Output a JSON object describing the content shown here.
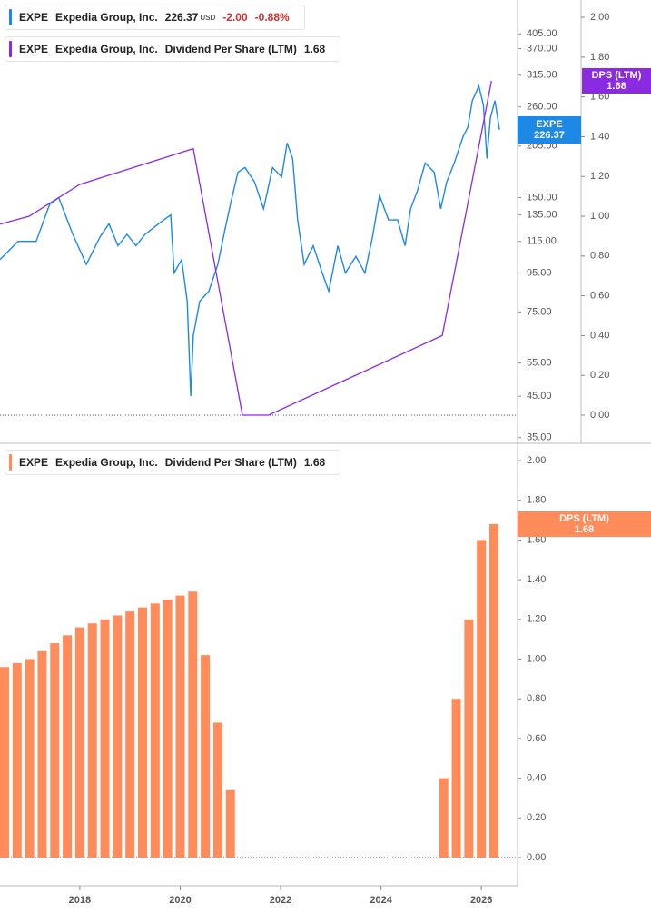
{
  "chart_data": [
    {
      "type": "line",
      "log_scale": true,
      "xlim": [
        2016.41,
        2026.72
      ],
      "ylim": [
        34,
        497
      ],
      "yticks": [
        {
          "value": 405,
          "label": "405.00"
        },
        {
          "value": 370,
          "label": "370.00"
        },
        {
          "value": 315,
          "label": "315.00"
        },
        {
          "value": 260,
          "label": "260.00"
        },
        {
          "value": 205,
          "label": "205.00"
        },
        {
          "value": 150,
          "label": "150.00"
        },
        {
          "value": 135,
          "label": "135.00"
        },
        {
          "value": 115,
          "label": "115.00"
        },
        {
          "value": 95,
          "label": "95.00"
        },
        {
          "value": 75,
          "label": "75.00"
        },
        {
          "value": 55,
          "label": "55.00"
        },
        {
          "value": 45,
          "label": "45.00"
        },
        {
          "value": 35,
          "label": "35.00"
        }
      ],
      "y2lim": [
        -0.137,
        2.087
      ],
      "y2ticks": [
        {
          "value": 2,
          "label": "2.00"
        },
        {
          "value": 1.8,
          "label": "1.80"
        },
        {
          "value": 1.6,
          "label": "1.60"
        },
        {
          "value": 1.4,
          "label": "1.40"
        },
        {
          "value": 1.2,
          "label": "1.20"
        },
        {
          "value": 1,
          "label": "1.00"
        },
        {
          "value": 0.8,
          "label": "0.80"
        },
        {
          "value": 0.6,
          "label": "0.60"
        },
        {
          "value": 0.4,
          "label": "0.40"
        },
        {
          "value": 0.2,
          "label": "0.20"
        },
        {
          "value": 0,
          "label": "0.00"
        }
      ],
      "series": [
        {
          "name": "EXPE",
          "company": "Expedia Group, Inc.",
          "color": "#1e88e5",
          "last": 226.37,
          "currency": "USD",
          "change": {
            "value": -2,
            "label": "-2.00"
          },
          "change_pct": {
            "value": -0.88,
            "label": "-0.88%"
          },
          "x": [
            2016.41,
            2016.77,
            2017.13,
            2017.4,
            2017.58,
            2017.76,
            2017.86,
            2018.13,
            2018.4,
            2018.58,
            2018.76,
            2018.94,
            2019.12,
            2019.3,
            2019.57,
            2019.81,
            2019.88,
            2020.03,
            2020.14,
            2020.21,
            2020.26,
            2020.39,
            2020.57,
            2020.75,
            2020.9,
            2021.02,
            2021.15,
            2021.29,
            2021.48,
            2021.66,
            2021.84,
            2022.02,
            2022.13,
            2022.24,
            2022.34,
            2022.47,
            2022.65,
            2022.83,
            2022.96,
            2023.14,
            2023.29,
            2023.5,
            2023.68,
            2023.83,
            2023.97,
            2024.15,
            2024.33,
            2024.48,
            2024.59,
            2024.73,
            2024.88,
            2025.06,
            2025.19,
            2025.31,
            2025.46,
            2025.64,
            2025.73,
            2025.82,
            2025.95,
            2026.04,
            2026.11,
            2026.18,
            2026.27,
            2026.36
          ],
          "values": [
            103,
            115,
            115,
            144,
            150,
            130,
            120,
            100,
            118,
            128,
            112,
            120,
            112,
            120,
            128,
            135,
            95,
            103,
            80,
            45,
            65,
            80,
            85,
            100,
            125,
            148,
            175,
            180,
            165,
            140,
            180,
            170,
            209,
            190,
            131,
            100,
            112,
            95,
            85,
            112,
            95,
            105,
            95,
            118,
            152,
            131,
            131,
            112,
            140,
            157,
            185,
            175,
            140,
            165,
            185,
            218,
            230,
            270,
            295,
            263,
            190,
            243,
            270,
            226.37
          ]
        },
        {
          "name": "Dividend Per Share (LTM)",
          "ticker": "EXPE",
          "company": "Expedia Group, Inc.",
          "tag": "DPS (LTM)",
          "color": "#8a2be2",
          "axis": "y2",
          "last": 1.68,
          "x": [
            2016.41,
            2016.99,
            2018.0,
            2020.26,
            2021.24,
            2021.76,
            2025.22,
            2026.2
          ],
          "values": [
            0.96,
            1.0,
            1.16,
            1.34,
            0,
            0,
            0.4,
            1.68
          ]
        }
      ]
    },
    {
      "type": "bar",
      "xlim": [
        2016.41,
        2026.72
      ],
      "xticks": [
        2018,
        2020,
        2022,
        2024,
        2026
      ],
      "ylim": [
        -0.142,
        2.078
      ],
      "yticks": [
        {
          "value": 2,
          "label": "2.00"
        },
        {
          "value": 1.8,
          "label": "1.80"
        },
        {
          "value": 1.6,
          "label": "1.60"
        },
        {
          "value": 1.4,
          "label": "1.40"
        },
        {
          "value": 1.2,
          "label": "1.20"
        },
        {
          "value": 1,
          "label": "1.00"
        },
        {
          "value": 0.8,
          "label": "0.80"
        },
        {
          "value": 0.6,
          "label": "0.60"
        },
        {
          "value": 0.4,
          "label": "0.40"
        },
        {
          "value": 0.2,
          "label": "0.20"
        },
        {
          "value": 0,
          "label": "0.00"
        }
      ],
      "series": [
        {
          "name": "Dividend Per Share (LTM)",
          "ticker": "EXPE",
          "company": "Expedia Group, Inc.",
          "tag": "DPS (LTM)",
          "color": "#ff8c5a",
          "last": 1.68,
          "x": [
            2016.5,
            2016.75,
            2017.0,
            2017.25,
            2017.5,
            2017.75,
            2018.0,
            2018.25,
            2018.5,
            2018.75,
            2019.0,
            2019.25,
            2019.5,
            2019.75,
            2020.0,
            2020.25,
            2020.5,
            2020.75,
            2021.0,
            2025.25,
            2025.5,
            2025.75,
            2026.0,
            2026.25
          ],
          "values": [
            0.96,
            0.98,
            1.0,
            1.04,
            1.08,
            1.12,
            1.16,
            1.18,
            1.2,
            1.22,
            1.24,
            1.26,
            1.28,
            1.3,
            1.32,
            1.34,
            1.02,
            0.68,
            0.34,
            0.4,
            0.8,
            1.2,
            1.6,
            1.68
          ]
        }
      ]
    }
  ]
}
